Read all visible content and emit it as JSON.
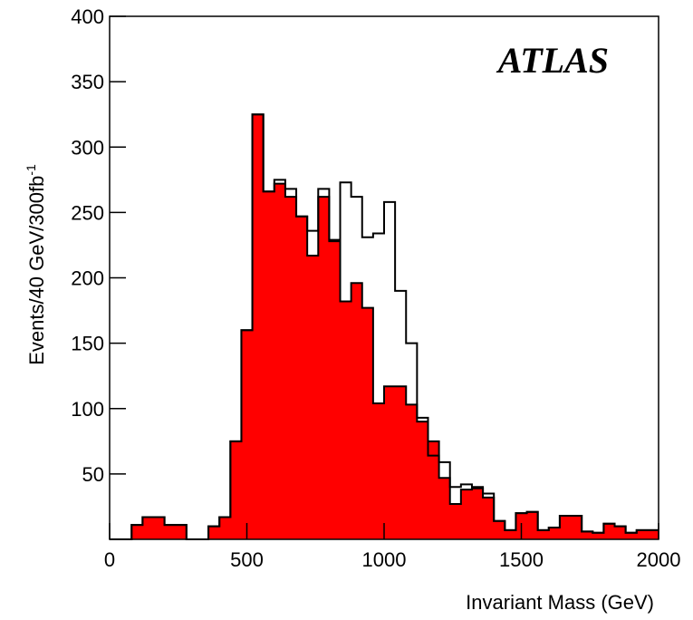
{
  "chart_data": {
    "type": "histogram",
    "xlabel": "Invariant Mass (GeV)",
    "ylabel": "Events/40 GeV/300fb",
    "ylabel_superscript": "-1",
    "annotation": "ATLAS",
    "bins": [
      0,
      40,
      80,
      120,
      160,
      200,
      240,
      280,
      320,
      360,
      400,
      440,
      480,
      520,
      560,
      600,
      640,
      680,
      720,
      760,
      800,
      840,
      880,
      920,
      960,
      1000,
      1040,
      1080,
      1120,
      1160,
      1200,
      1240,
      1280,
      1320,
      1360,
      1400,
      1440,
      1480,
      1520,
      1560,
      1600,
      1640,
      1680,
      1720,
      1760,
      1800,
      1840,
      1880,
      1920,
      1960,
      2000
    ],
    "series": [
      {
        "color": "#ff0000",
        "fill": true,
        "values": [
          0,
          0,
          11,
          17,
          17,
          11,
          11,
          0,
          0,
          10,
          17,
          75,
          160,
          325,
          266,
          272,
          262,
          247,
          217,
          262,
          228,
          182,
          196,
          177,
          104,
          117,
          117,
          103,
          90,
          75,
          47,
          27,
          38,
          39,
          32,
          14,
          7,
          20,
          21,
          7,
          9,
          18,
          18,
          6,
          5,
          12,
          10,
          5,
          7,
          7
        ]
      },
      {
        "color": "#000000",
        "fill": false,
        "values": [
          0,
          0,
          11,
          17,
          17,
          11,
          11,
          0,
          0,
          10,
          17,
          75,
          160,
          325,
          266,
          275,
          268,
          247,
          236,
          268,
          229,
          273,
          262,
          231,
          234,
          258,
          190,
          150,
          93,
          64,
          59,
          40,
          42,
          40,
          35,
          14,
          7,
          20,
          21,
          7,
          9,
          18,
          18,
          6,
          5,
          12,
          10,
          5,
          7,
          7
        ]
      }
    ],
    "xlim": [
      0,
      2000
    ],
    "xticks": [
      0,
      500,
      1000,
      1500,
      2000
    ],
    "ylim": [
      0,
      400
    ],
    "yticks": [
      50,
      100,
      150,
      200,
      250,
      300,
      350,
      400
    ]
  }
}
